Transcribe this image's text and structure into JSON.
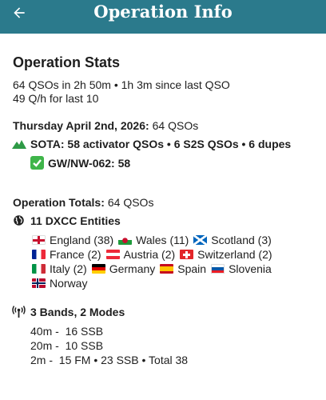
{
  "header": {
    "title": "Operation Info"
  },
  "stats": {
    "title": "Operation Stats",
    "lines": [
      "64 QSOs in 2h 50m • 1h 3m since last QSO",
      "49 Q/h for last 10"
    ]
  },
  "day": {
    "date": "Thursday April 2nd, 2026:",
    "count": "64 QSOs",
    "sota": "SOTA: 58 activator QSOs • 6 S2S QSOs • 6 dupes",
    "summit": "GW/NW-062: 58"
  },
  "totals": {
    "label": "Operation Totals:",
    "count": "64 QSOs",
    "dxcc": "11 DXCC Entities",
    "entities": [
      "England (38)",
      "Wales (11)",
      "Scotland (3)",
      "France (2)",
      "Austria (2)",
      "Switzerland (2)",
      "Italy (2)",
      "Germany",
      "Spain",
      "Slovenia",
      "Norway"
    ],
    "bands_title": "3 Bands, 2 Modes",
    "bands": [
      "40m -  16 SSB",
      "20m -  10 SSB",
      "2m -  15 FM • 23 SSB • Total 38"
    ]
  }
}
